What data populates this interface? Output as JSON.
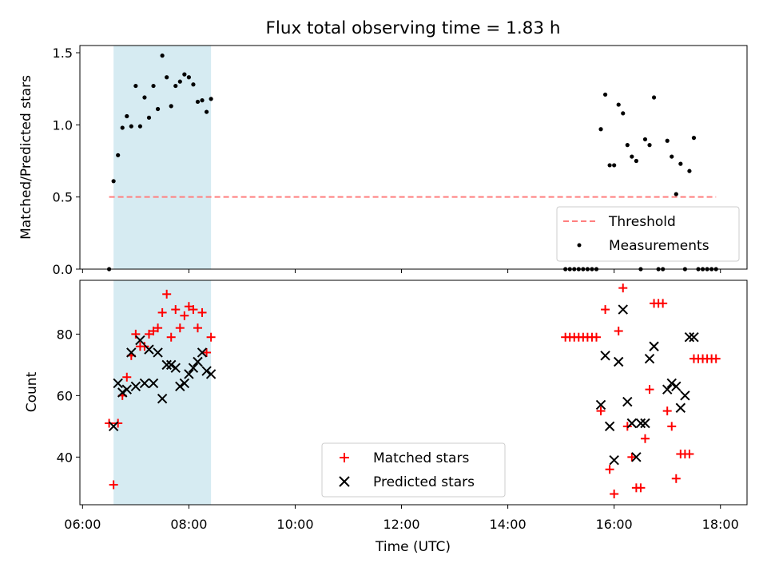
{
  "chart_data": [
    {
      "type": "scatter",
      "title": "Flux total observing time = 1.83 h",
      "xlabel": "",
      "ylabel": "Matched/Predicted stars",
      "xlim": [
        "05:57",
        "18:30"
      ],
      "ylim": [
        0,
        1.55
      ],
      "yticks": [
        0.0,
        0.5,
        1.0,
        1.5
      ],
      "ytick_labels": [
        "0.0",
        "0.5",
        "1.0",
        "1.5"
      ],
      "xticks": [
        "06:00",
        "08:00",
        "10:00",
        "12:00",
        "14:00",
        "16:00",
        "18:00"
      ],
      "shaded_interval": {
        "x": [
          "06:35",
          "08:25"
        ],
        "color": "#add8e6"
      },
      "legend_position": "lower right",
      "series": [
        {
          "name": "Threshold",
          "style": "dashed line",
          "color": "#ff7f7f",
          "x": [
            "06:30",
            "17:55"
          ],
          "y": [
            0.5,
            0.5
          ]
        },
        {
          "name": "Measurements",
          "style": "dot",
          "color": "#000000",
          "x": [
            "06:30",
            "06:35",
            "06:40",
            "06:45",
            "06:50",
            "06:55",
            "07:00",
            "07:05",
            "07:10",
            "07:15",
            "07:20",
            "07:25",
            "07:30",
            "07:35",
            "07:40",
            "07:45",
            "07:50",
            "07:55",
            "08:00",
            "08:05",
            "08:10",
            "08:15",
            "08:20",
            "08:25",
            "15:05",
            "15:10",
            "15:15",
            "15:20",
            "15:25",
            "15:30",
            "15:35",
            "15:40",
            "15:45",
            "15:50",
            "15:55",
            "16:00",
            "16:05",
            "16:10",
            "16:15",
            "16:20",
            "16:25",
            "16:30",
            "16:35",
            "16:40",
            "16:45",
            "16:50",
            "16:55",
            "17:00",
            "17:05",
            "17:10",
            "17:15",
            "17:20",
            "17:25",
            "17:30",
            "17:35",
            "17:40",
            "17:45",
            "17:50",
            "17:55"
          ],
          "y": [
            0.0,
            0.61,
            0.79,
            0.98,
            1.06,
            0.99,
            1.27,
            0.99,
            1.19,
            1.05,
            1.27,
            1.11,
            1.48,
            1.33,
            1.13,
            1.27,
            1.3,
            1.35,
            1.33,
            1.28,
            1.16,
            1.17,
            1.09,
            1.18,
            0.0,
            0.0,
            0.0,
            0.0,
            0.0,
            0.0,
            0.0,
            0.0,
            0.97,
            1.21,
            0.72,
            0.72,
            1.14,
            1.08,
            0.86,
            0.78,
            0.75,
            0.0,
            0.9,
            0.86,
            1.19,
            0.0,
            0.0,
            0.89,
            0.78,
            0.52,
            0.73,
            0.0,
            0.68,
            0.91,
            0.0,
            0.0,
            0.0,
            0.0,
            0.0
          ]
        }
      ]
    },
    {
      "type": "scatter",
      "title": "",
      "xlabel": "Time (UTC)",
      "ylabel": "Count",
      "xlim": [
        "05:57",
        "18:30"
      ],
      "ylim": [
        24.5,
        97.5
      ],
      "yticks": [
        40,
        60,
        80
      ],
      "ytick_labels": [
        "40",
        "60",
        "80"
      ],
      "xticks": [
        "06:00",
        "08:00",
        "10:00",
        "12:00",
        "14:00",
        "16:00",
        "18:00"
      ],
      "xtick_labels": [
        "06:00",
        "08:00",
        "10:00",
        "12:00",
        "14:00",
        "16:00",
        "18:00"
      ],
      "shaded_interval": {
        "x": [
          "06:35",
          "08:25"
        ],
        "color": "#add8e6"
      },
      "legend_position": "lower center",
      "series": [
        {
          "name": "Matched stars",
          "marker": "+",
          "color": "#ff0000",
          "x": [
            "06:30",
            "06:35",
            "06:40",
            "06:45",
            "06:50",
            "06:55",
            "07:00",
            "07:05",
            "07:10",
            "07:15",
            "07:20",
            "07:25",
            "07:30",
            "07:35",
            "07:40",
            "07:45",
            "07:50",
            "07:55",
            "08:00",
            "08:05",
            "08:10",
            "08:15",
            "08:20",
            "08:25",
            "15:05",
            "15:10",
            "15:15",
            "15:20",
            "15:25",
            "15:30",
            "15:35",
            "15:40",
            "15:45",
            "15:50",
            "15:55",
            "16:00",
            "16:05",
            "16:10",
            "16:15",
            "16:20",
            "16:25",
            "16:30",
            "16:35",
            "16:40",
            "16:45",
            "16:50",
            "16:55",
            "17:00",
            "17:05",
            "17:10",
            "17:15",
            "17:20",
            "17:25",
            "17:30",
            "17:35",
            "17:40",
            "17:45",
            "17:50",
            "17:55"
          ],
          "y": [
            51,
            31,
            51,
            60,
            66,
            73,
            80,
            76,
            76,
            80,
            81,
            82,
            87,
            93,
            79,
            88,
            82,
            86,
            89,
            88,
            82,
            87,
            74,
            79,
            79,
            79,
            79,
            79,
            79,
            79,
            79,
            79,
            55,
            88,
            36,
            28,
            81,
            95,
            50,
            40,
            30,
            30,
            46,
            62,
            90,
            90,
            90,
            55,
            50,
            33,
            41,
            41,
            41,
            72,
            72,
            72,
            72,
            72,
            72
          ]
        },
        {
          "name": "Predicted stars",
          "marker": "x",
          "color": "#000000",
          "x": [
            "06:35",
            "06:40",
            "06:45",
            "06:50",
            "06:55",
            "07:00",
            "07:05",
            "07:10",
            "07:15",
            "07:20",
            "07:25",
            "07:30",
            "07:35",
            "07:40",
            "07:45",
            "07:50",
            "07:55",
            "08:00",
            "08:05",
            "08:10",
            "08:15",
            "08:20",
            "08:25",
            "15:45",
            "15:50",
            "15:55",
            "16:00",
            "16:05",
            "16:10",
            "16:15",
            "16:20",
            "16:25",
            "16:30",
            "16:35",
            "16:40",
            "16:45",
            "17:00",
            "17:05",
            "17:10",
            "17:15",
            "17:20",
            "17:25",
            "17:30"
          ],
          "y": [
            50,
            64,
            61,
            62,
            74,
            63,
            78,
            64,
            75,
            64,
            74,
            59,
            70,
            70,
            69,
            63,
            64,
            67,
            69,
            71,
            74,
            68,
            67,
            57,
            73,
            50,
            39,
            71,
            88,
            58,
            51,
            40,
            51,
            51,
            72,
            76,
            62,
            64,
            63,
            56,
            60,
            79,
            79
          ]
        }
      ]
    }
  ]
}
